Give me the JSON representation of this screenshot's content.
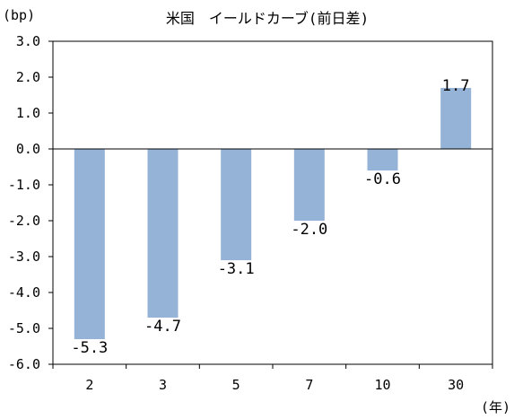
{
  "chart_data": {
    "type": "bar",
    "title": "米国　イールドカーブ(前日差)",
    "ylabel": "(bp)",
    "xlabel": "(年)",
    "categories": [
      "2",
      "3",
      "5",
      "7",
      "10",
      "30"
    ],
    "values": [
      -5.3,
      -4.7,
      -3.1,
      -2.0,
      -0.6,
      1.7
    ],
    "data_labels": [
      "-5.3",
      "-4.7",
      "-3.1",
      "-2.0",
      "-0.6",
      "1.7"
    ],
    "ylim": [
      -6.0,
      3.0
    ],
    "yticks": [
      "3.0",
      "2.0",
      "1.0",
      "0.0",
      "-1.0",
      "-2.0",
      "-3.0",
      "-4.0",
      "-5.0",
      "-6.0"
    ],
    "ytick_values": [
      3,
      2,
      1,
      0,
      -1,
      -2,
      -3,
      -4,
      -5,
      -6
    ],
    "grid": false,
    "legend": "none",
    "colors": {
      "bar": "#95b3d7",
      "axis": "#000000",
      "text": "#000000"
    }
  }
}
